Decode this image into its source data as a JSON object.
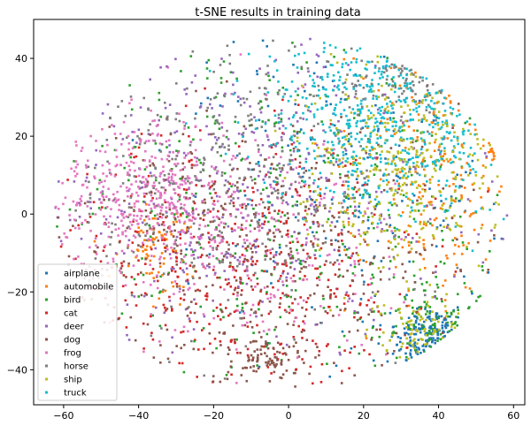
{
  "chart_data": {
    "type": "scatter",
    "title": "t-SNE results in training data",
    "xlabel": "",
    "ylabel": "",
    "xlim": [
      -68,
      63
    ],
    "ylim": [
      -49,
      50
    ],
    "xticks": [
      -60,
      -40,
      -20,
      0,
      20,
      40,
      60
    ],
    "yticks": [
      -40,
      -20,
      0,
      20,
      40
    ],
    "grid": false,
    "legend_position": "lower-left",
    "series": [
      {
        "name": "airplane",
        "color": "#1f77b4",
        "clusters": [
          {
            "cx": 38,
            "cy": -32,
            "sx": 5,
            "sy": 4,
            "n": 220
          },
          {
            "cx": 20,
            "cy": 10,
            "sx": 25,
            "sy": 25,
            "n": 260
          }
        ]
      },
      {
        "name": "automobile",
        "color": "#ff7f0e",
        "clusters": [
          {
            "cx": 40,
            "cy": 10,
            "sx": 12,
            "sy": 18,
            "n": 260
          },
          {
            "cx": 55,
            "cy": 17,
            "sx": 1,
            "sy": 2,
            "n": 40
          },
          {
            "cx": -35,
            "cy": -8,
            "sx": 6,
            "sy": 6,
            "n": 90
          }
        ]
      },
      {
        "name": "bird",
        "color": "#2ca02c",
        "clusters": [
          {
            "cx": 0,
            "cy": 0,
            "sx": 35,
            "sy": 25,
            "n": 420
          },
          {
            "cx": 40,
            "cy": -28,
            "sx": 8,
            "sy": 6,
            "n": 120
          }
        ]
      },
      {
        "name": "cat",
        "color": "#d62728",
        "clusters": [
          {
            "cx": -15,
            "cy": -15,
            "sx": 28,
            "sy": 18,
            "n": 500
          }
        ]
      },
      {
        "name": "deer",
        "color": "#9467bd",
        "clusters": [
          {
            "cx": -10,
            "cy": 5,
            "sx": 30,
            "sy": 20,
            "n": 450
          }
        ]
      },
      {
        "name": "dog",
        "color": "#8c564b",
        "clusters": [
          {
            "cx": -10,
            "cy": -10,
            "sx": 28,
            "sy": 18,
            "n": 520
          },
          {
            "cx": -5,
            "cy": -37,
            "sx": 5,
            "sy": 3,
            "n": 80
          }
        ]
      },
      {
        "name": "frog",
        "color": "#e377c2",
        "clusters": [
          {
            "cx": -40,
            "cy": 5,
            "sx": 14,
            "sy": 10,
            "n": 420
          },
          {
            "cx": -10,
            "cy": -5,
            "sx": 20,
            "sy": 15,
            "n": 250
          }
        ]
      },
      {
        "name": "horse",
        "color": "#7f7f7f",
        "clusters": [
          {
            "cx": -15,
            "cy": 10,
            "sx": 25,
            "sy": 20,
            "n": 450
          },
          {
            "cx": 30,
            "cy": 35,
            "sx": 8,
            "sy": 5,
            "n": 120
          }
        ]
      },
      {
        "name": "ship",
        "color": "#bcbd22",
        "clusters": [
          {
            "cx": 30,
            "cy": 12,
            "sx": 14,
            "sy": 12,
            "n": 400
          },
          {
            "cx": 35,
            "cy": -30,
            "sx": 6,
            "sy": 5,
            "n": 90
          }
        ]
      },
      {
        "name": "truck",
        "color": "#17becf",
        "clusters": [
          {
            "cx": 25,
            "cy": 25,
            "sx": 16,
            "sy": 12,
            "n": 620
          }
        ]
      }
    ]
  }
}
